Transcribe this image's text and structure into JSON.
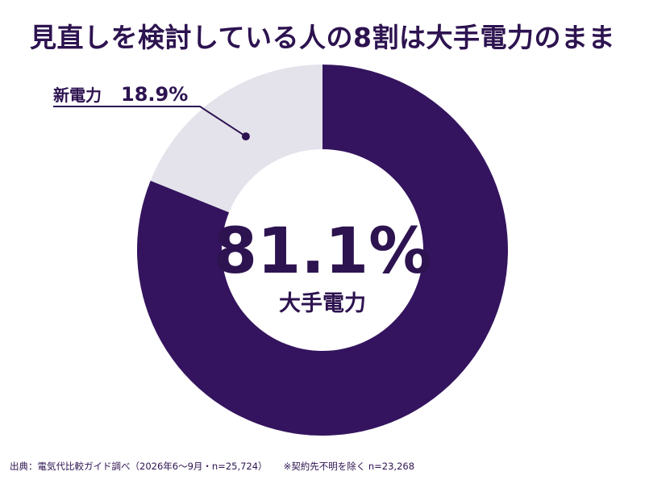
{
  "title": "見直しを検討している人の8割は大手電力のまま",
  "chart_data": {
    "type": "pie",
    "style": "donut",
    "categories": [
      "大手電力",
      "新電力"
    ],
    "values": [
      81.1,
      18.9
    ],
    "value_labels": [
      "81.1%",
      "18.9%"
    ],
    "colors": [
      "#34145e",
      "#e4e3eb"
    ]
  },
  "footer": {
    "source": "出典：電気代比較ガイド調べ（2026年6〜9月・n=25,724）",
    "note": "※契約先不明を除く n=23,268"
  }
}
